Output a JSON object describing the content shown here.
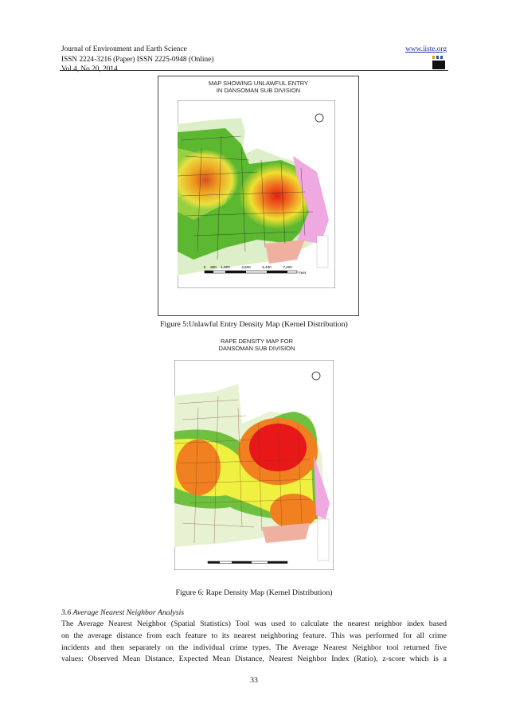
{
  "header": {
    "journal": "Journal of Environment and Earth Science",
    "issn": "ISSN 2224-3216 (Paper) ISSN 2225-0948 (Online)",
    "volume": "Vol.4, No.20, 2014",
    "website": "www.iiste.org",
    "logo_text": "IISTE"
  },
  "figures": [
    {
      "map_title_line1": "MAP SHOWING UNLAWFUL ENTRY",
      "map_title_line2": "IN DANSOMAN SUB DIVISION",
      "scale_labels": [
        "0",
        "900",
        "1,800",
        "3,600",
        "5,400",
        "7,200",
        "Feet"
      ],
      "caption": "Figure 5:Unlawful Entry Density Map (Kernel Distribution)"
    },
    {
      "map_title_line1": "RAPE DENSITY MAP FOR",
      "map_title_line2": "DANSOMAN SUB DIVISION",
      "caption": "Figure 6: Rape Density Map (Kernel Distribution)"
    }
  ],
  "section": {
    "heading": "3.6 Average Nearest Neighbor Analysis",
    "lines": [
      "The Average Nearest Neighbor (Spatial Statistics) Tool was used to calculate the nearest neighbor index based",
      "on the average distance from each feature to its nearest neighboring feature. This was performed for all crime",
      "incidents and then separately on the individual crime types. The Average Nearest Neighbor tool returned five",
      "values: Observed Mean Distance, Expected Mean Distance, Nearest Neighbor Index (Ratio), z-score which is a"
    ]
  },
  "page_number": "33"
}
